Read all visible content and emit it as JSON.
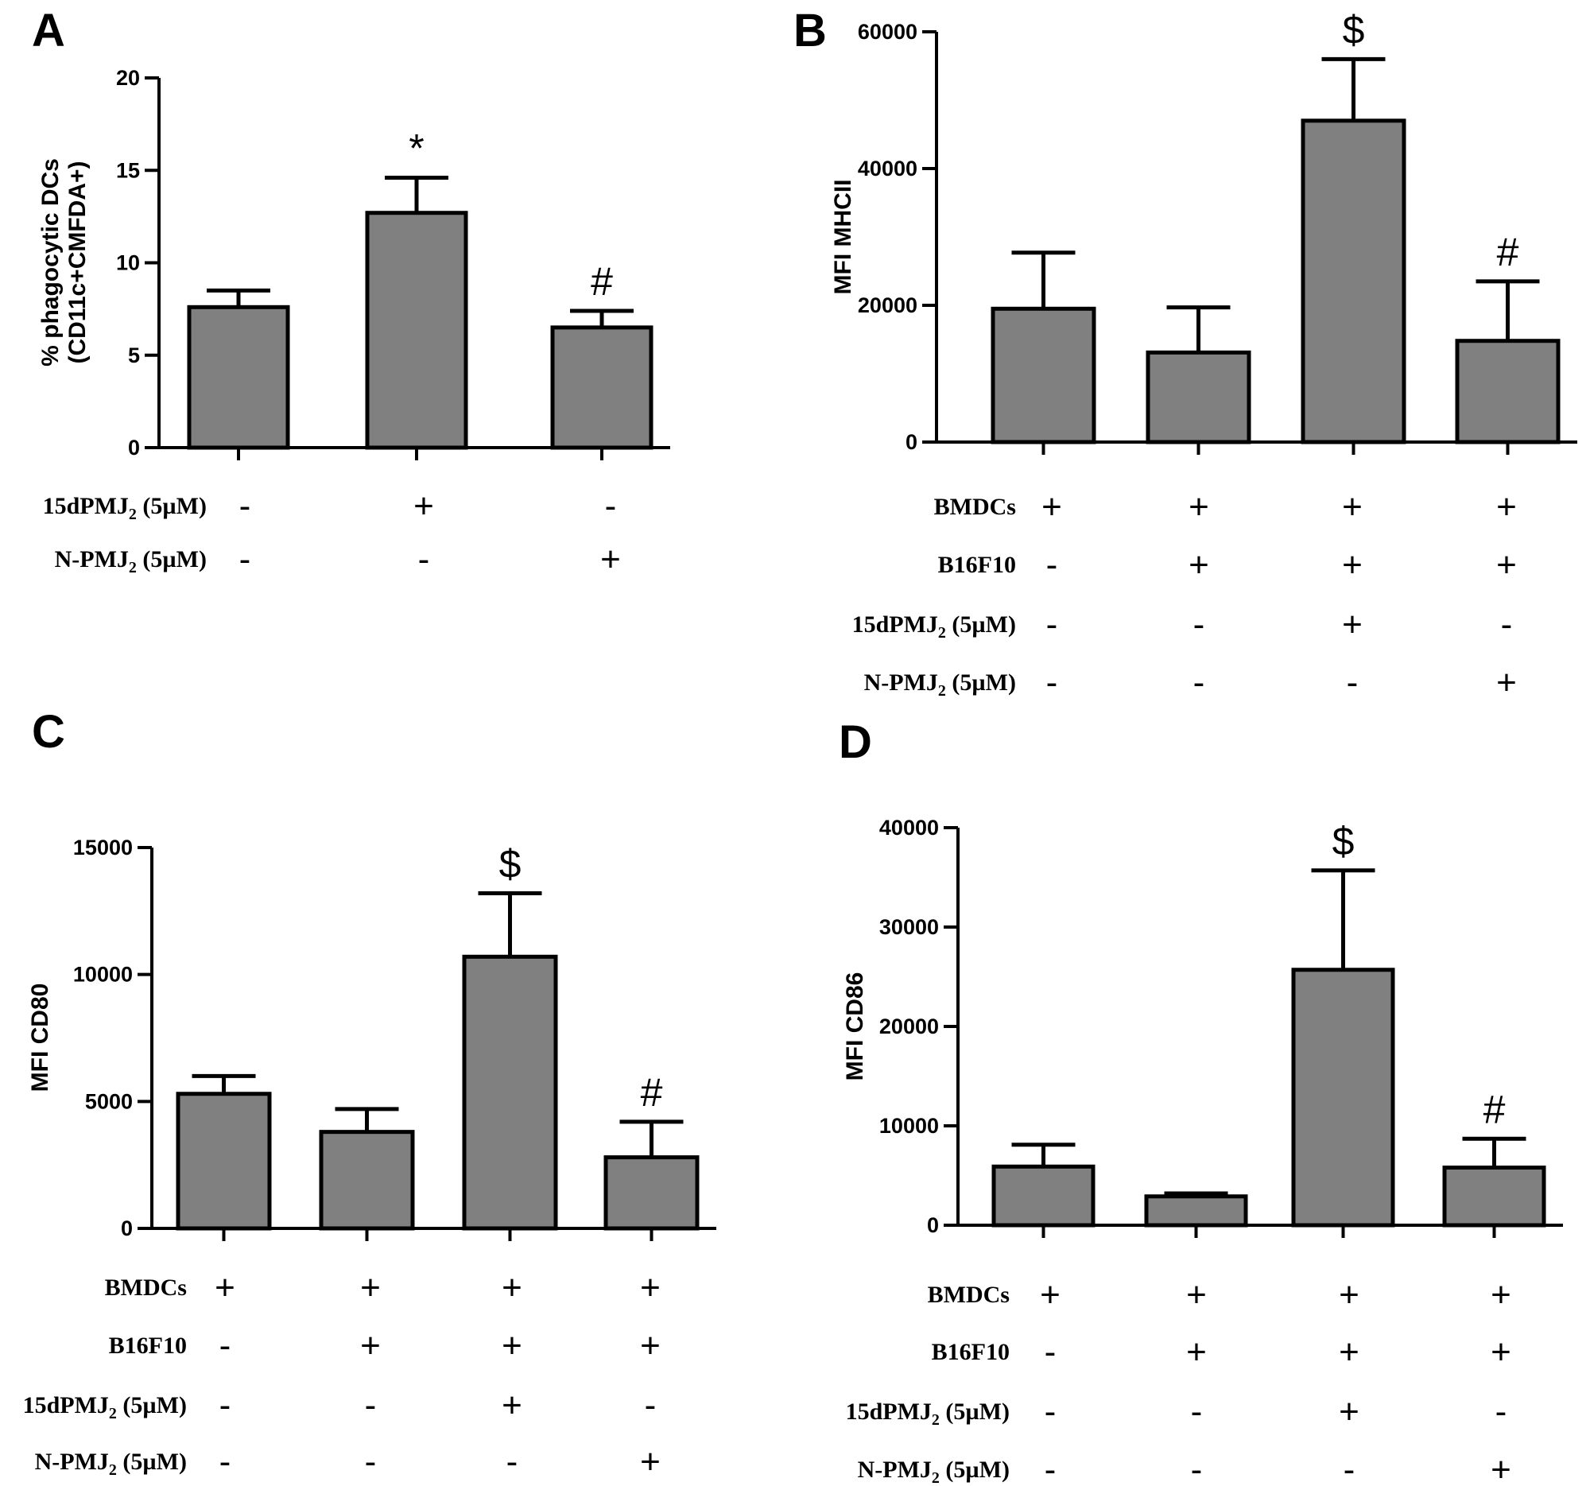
{
  "colors": {
    "bar_fill": "#808080",
    "stroke": "#000000",
    "background": "#ffffff"
  },
  "chart_data": [
    {
      "panel": "A",
      "type": "bar",
      "ylabel_lines": [
        "% phagocytic DCs",
        "(CD11c+CMFDA+)"
      ],
      "ylim": [
        0,
        20
      ],
      "yticks": [
        "0",
        "5",
        "10",
        "15",
        "20"
      ],
      "values": [
        7.6,
        12.7,
        6.5
      ],
      "errors": [
        0.9,
        1.9,
        0.9
      ],
      "significance": [
        "",
        "*",
        "#"
      ],
      "conditions": [
        {
          "label": "15dPMJ",
          "sub": "2",
          "suffix": " (5µM)",
          "signs": [
            "-",
            "+",
            "-"
          ]
        },
        {
          "label": "N-PMJ",
          "sub": "2",
          "suffix": " (5µM)",
          "signs": [
            "-",
            "-",
            "+"
          ]
        }
      ]
    },
    {
      "panel": "B",
      "type": "bar",
      "ylabel_lines": [
        "MFI MHCII"
      ],
      "ylim": [
        0,
        60000
      ],
      "yticks": [
        "0",
        "20000",
        "40000",
        "60000"
      ],
      "values": [
        19500,
        13100,
        47000,
        14800
      ],
      "errors": [
        8200,
        6600,
        9000,
        8700
      ],
      "significance": [
        "",
        "",
        "$",
        "#"
      ],
      "conditions": [
        {
          "label": "BMDCs",
          "sub": "",
          "suffix": "",
          "signs": [
            "+",
            "+",
            "+",
            "+"
          ]
        },
        {
          "label": "B16F10",
          "sub": "",
          "suffix": "",
          "signs": [
            "-",
            "+",
            "+",
            "+"
          ]
        },
        {
          "label": "15dPMJ",
          "sub": "2",
          "suffix": " (5µM)",
          "signs": [
            "-",
            "-",
            "+",
            "-"
          ]
        },
        {
          "label": "N-PMJ",
          "sub": "2",
          "suffix": " (5µM)",
          "signs": [
            "-",
            "-",
            "-",
            "+"
          ]
        }
      ]
    },
    {
      "panel": "C",
      "type": "bar",
      "ylabel_lines": [
        "MFI CD80"
      ],
      "ylim": [
        0,
        15000
      ],
      "yticks": [
        "0",
        "5000",
        "10000",
        "15000"
      ],
      "values": [
        5300,
        3800,
        10700,
        2800
      ],
      "errors": [
        700,
        900,
        2500,
        1400
      ],
      "significance": [
        "",
        "",
        "$",
        "#"
      ],
      "conditions": [
        {
          "label": "BMDCs",
          "sub": "",
          "suffix": "",
          "signs": [
            "+",
            "+",
            "+",
            "+"
          ]
        },
        {
          "label": "B16F10",
          "sub": "",
          "suffix": "",
          "signs": [
            "-",
            "+",
            "+",
            "+"
          ]
        },
        {
          "label": "15dPMJ",
          "sub": "2",
          "suffix": " (5µM)",
          "signs": [
            "-",
            "-",
            "+",
            "-"
          ]
        },
        {
          "label": "N-PMJ",
          "sub": "2",
          "suffix": " (5µM)",
          "signs": [
            "-",
            "-",
            "-",
            "+"
          ]
        }
      ]
    },
    {
      "panel": "D",
      "type": "bar",
      "ylabel_lines": [
        "MFI CD86"
      ],
      "ylim": [
        0,
        40000
      ],
      "yticks": [
        "0",
        "10000",
        "20000",
        "30000",
        "40000"
      ],
      "values": [
        5900,
        2900,
        25700,
        5800
      ],
      "errors": [
        2200,
        300,
        10000,
        2900
      ],
      "significance": [
        "",
        "",
        "$",
        "#"
      ],
      "conditions": [
        {
          "label": "BMDCs",
          "sub": "",
          "suffix": "",
          "signs": [
            "+",
            "+",
            "+",
            "+"
          ]
        },
        {
          "label": "B16F10",
          "sub": "",
          "suffix": "",
          "signs": [
            "-",
            "+",
            "+",
            "+"
          ]
        },
        {
          "label": "15dPMJ",
          "sub": "2",
          "suffix": " (5µM)",
          "signs": [
            "-",
            "-",
            "+",
            "-"
          ]
        },
        {
          "label": "N-PMJ",
          "sub": "2",
          "suffix": " (5µM)",
          "signs": [
            "-",
            "-",
            "-",
            "+"
          ]
        }
      ]
    }
  ]
}
